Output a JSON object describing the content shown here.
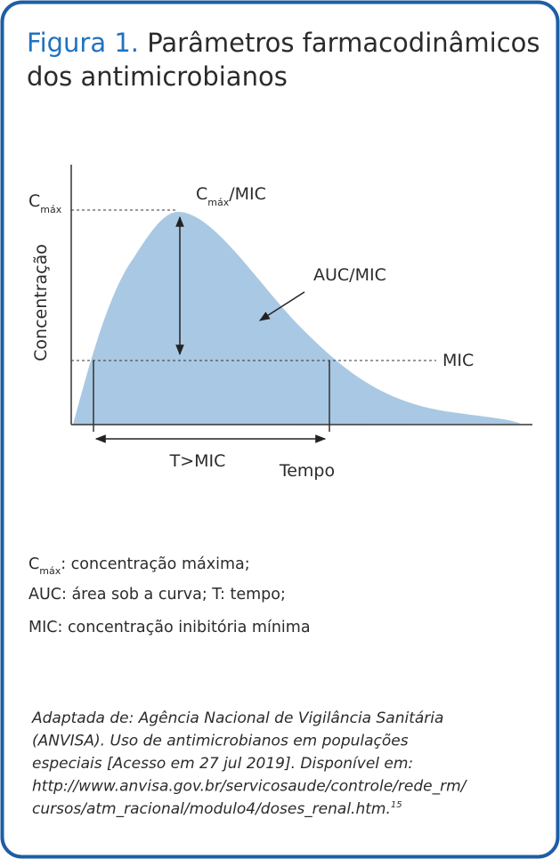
{
  "figure": {
    "label": "Figura 1.",
    "title_line1": "Parâmetros farmacodinâmicos",
    "title_line2": "dos antimicrobianos"
  },
  "diagram": {
    "y_axis_label": "Concentração",
    "x_axis_label": "Tempo",
    "cmax": {
      "base": "C",
      "sub": "máx"
    },
    "cmax_mic": {
      "base": "C",
      "sub": "máx",
      "rest": "/MIC"
    },
    "auc_mic": "AUC/MIC",
    "mic": "MIC",
    "t_mic": "T>MIC"
  },
  "legend": {
    "line1": {
      "base": "C",
      "sub": "máx",
      "rest": ": concentração máxima;"
    },
    "line2": "AUC: área sob a curva; T: tempo;",
    "line3": "MIC: concentração inibitória mínima"
  },
  "source": {
    "lines": [
      "Adaptada de: Agência Nacional de Vigilância Sanitária",
      "(ANVISA). Uso de antimicrobianos em populações",
      "especiais [Acesso em 27 jul 2019]. Disponível em:",
      "http://www.anvisa.gov.br/servicosaude/controle/rede_rm/",
      "cursos/atm_racional/modulo4/doses_renal.htm."
    ],
    "ref": "15"
  }
}
